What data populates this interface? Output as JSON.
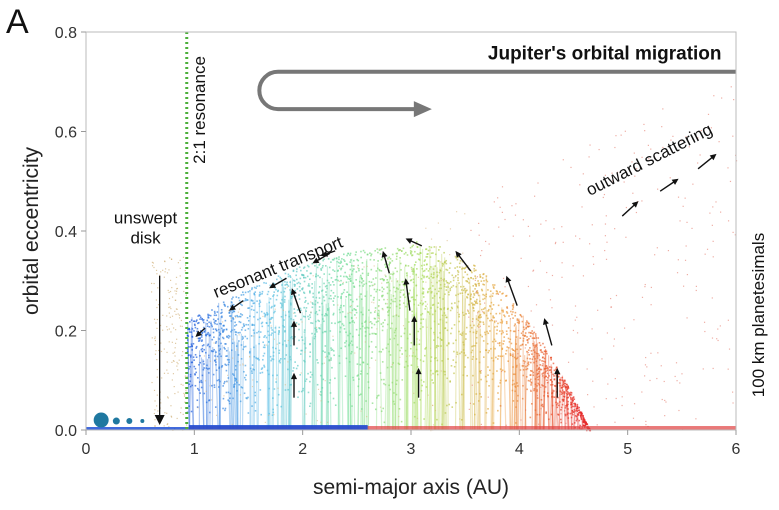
{
  "panel_label": "A",
  "chart_data": {
    "type": "scatter",
    "title": "Jupiter's orbital migration",
    "xlabel": "semi-major axis (AU)",
    "ylabel": "orbital eccentricity",
    "right_label": "100 km planetesimals",
    "xlim": [
      0,
      6
    ],
    "ylim": [
      0,
      0.8
    ],
    "x_ticks": [
      0,
      1,
      2,
      3,
      4,
      5,
      6
    ],
    "y_ticks": [
      0.0,
      0.2,
      0.4,
      0.6,
      0.8
    ],
    "x_tick_labels": [
      "0",
      "1",
      "2",
      "3",
      "4",
      "5",
      "6"
    ],
    "y_tick_labels": [
      "0.0",
      "0.2",
      "0.4",
      "0.6",
      "0.8"
    ],
    "grid": false,
    "colors": {
      "resonance_line": "#4caf3a",
      "migration_arrow": "#777777",
      "planet": "#1f78a0",
      "disk": "#1f4fd6"
    },
    "resonance": {
      "x": 0.93,
      "label": "2:1 resonance"
    },
    "annotations": [
      {
        "text": "unswept",
        "x": 0.55,
        "y": 0.415
      },
      {
        "text": "disk",
        "x": 0.55,
        "y": 0.375
      },
      {
        "text": "resonant transport",
        "x": 1.2,
        "y": 0.265,
        "angle": -22
      },
      {
        "text": "outward scattering",
        "x": 4.65,
        "y": 0.47,
        "angle": -27
      }
    ],
    "unswept_arrow": {
      "x": 0.68,
      "y_from": 0.31,
      "y_to": 0.01
    },
    "planet_markers": [
      {
        "x": 0.14,
        "y": 0.02,
        "size": 7.5
      },
      {
        "x": 0.28,
        "y": 0.018,
        "size": 3.5
      },
      {
        "x": 0.4,
        "y": 0.018,
        "size": 3
      },
      {
        "x": 0.52,
        "y": 0.018,
        "size": 2
      }
    ],
    "migration_path": {
      "x_start": 6.0,
      "x_turn": 1.6,
      "x_end": 3.1,
      "y_top": 0.72,
      "y_bottom": 0.645
    },
    "flow_arrows": [
      {
        "x": 1.1,
        "y": 0.205,
        "dx": -0.09,
        "dy": -0.018
      },
      {
        "x": 1.45,
        "y": 0.26,
        "dx": -0.13,
        "dy": -0.02
      },
      {
        "x": 1.85,
        "y": 0.305,
        "dx": -0.16,
        "dy": -0.02
      },
      {
        "x": 2.25,
        "y": 0.355,
        "dx": -0.16,
        "dy": -0.02
      },
      {
        "x": 2.3,
        "y": 0.36,
        "dx": -0.13,
        "dy": -0.01
      },
      {
        "x": 3.1,
        "y": 0.37,
        "dx": -0.15,
        "dy": 0.015
      },
      {
        "x": 3.55,
        "y": 0.32,
        "dx": -0.14,
        "dy": 0.04
      },
      {
        "x": 2.8,
        "y": 0.315,
        "dx": -0.06,
        "dy": 0.045
      },
      {
        "x": 1.98,
        "y": 0.235,
        "dx": -0.08,
        "dy": 0.05
      },
      {
        "x": 3.98,
        "y": 0.25,
        "dx": -0.1,
        "dy": 0.06
      },
      {
        "x": 2.99,
        "y": 0.24,
        "dx": -0.04,
        "dy": 0.065
      },
      {
        "x": 4.3,
        "y": 0.17,
        "dx": -0.07,
        "dy": 0.055
      },
      {
        "x": 1.92,
        "y": 0.17,
        "dx": 0,
        "dy": 0.05
      },
      {
        "x": 3.03,
        "y": 0.17,
        "dx": 0,
        "dy": 0.06
      },
      {
        "x": 1.92,
        "y": 0.065,
        "dx": 0,
        "dy": 0.05
      },
      {
        "x": 3.07,
        "y": 0.065,
        "dx": 0,
        "dy": 0.06
      },
      {
        "x": 4.35,
        "y": 0.065,
        "dx": 0,
        "dy": 0.06
      },
      {
        "x": 4.95,
        "y": 0.43,
        "dx": 0.15,
        "dy": 0.03
      },
      {
        "x": 5.3,
        "y": 0.48,
        "dx": 0.17,
        "dy": 0.025
      },
      {
        "x": 5.65,
        "y": 0.525,
        "dx": 0.17,
        "dy": 0.03
      }
    ]
  }
}
